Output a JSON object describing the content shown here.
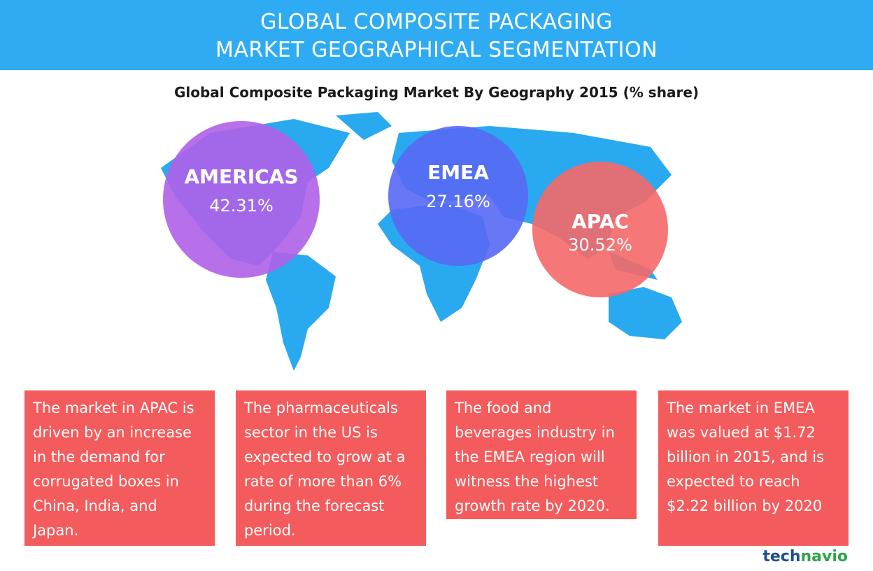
{
  "header": {
    "title_lines": [
      "GLOBAL COMPOSITE PACKAGING",
      "MARKET GEOGRAPHICAL SEGMENTATION"
    ]
  },
  "subtitle": "Global Composite Packaging Market By Geography 2015 (% share)",
  "regions": [
    {
      "name": "AMERICAS",
      "share": "42.31%"
    },
    {
      "name": "EMEA",
      "share": "27.16%"
    },
    {
      "name": "APAC",
      "share": "30.52%"
    }
  ],
  "notes": [
    "The market in APAC is driven by an increase in the demand for corrugated boxes in China, India, and Japan.",
    "The pharmaceuticals sector in the US is expected to grow at a rate of more than 6% during the forecast period.",
    "The food and beverages industry in the EMEA region will witness the highest growth rate by 2020.",
    "The market in EMEA was valued at $1.72 billion in 2015, and is expected to reach $2.22 billion by 2020"
  ],
  "logo": {
    "part1": "tech",
    "part2": "navio"
  }
}
